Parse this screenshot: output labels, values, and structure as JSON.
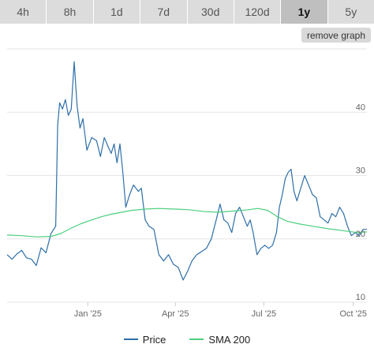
{
  "timeframes": [
    {
      "label": "4h",
      "active": false
    },
    {
      "label": "8h",
      "active": false
    },
    {
      "label": "1d",
      "active": false
    },
    {
      "label": "7d",
      "active": false
    },
    {
      "label": "30d",
      "active": false
    },
    {
      "label": "120d",
      "active": false
    },
    {
      "label": "1y",
      "active": true
    },
    {
      "label": "5y",
      "active": false
    }
  ],
  "remove_graph_label": "remove graph",
  "chart_data": {
    "type": "line",
    "x_start": "2024-10-10",
    "x_end": "2025-10-15",
    "ylim": [
      10,
      50
    ],
    "yticks": [
      10,
      20,
      30,
      40
    ],
    "xticks": [
      {
        "date": "2025-01-01",
        "label": "Jan '25"
      },
      {
        "date": "2025-04-01",
        "label": "Apr '25"
      },
      {
        "date": "2025-07-01",
        "label": "Jul '25"
      },
      {
        "date": "2025-10-01",
        "label": "Oct '25"
      }
    ],
    "grid": true,
    "legend_position": "bottom",
    "series": [
      {
        "name": "Price",
        "color": "#2f6fa8",
        "points": [
          [
            "2024-10-10",
            17.5
          ],
          [
            "2024-10-15",
            16.8
          ],
          [
            "2024-10-20",
            17.6
          ],
          [
            "2024-10-25",
            18.2
          ],
          [
            "2024-10-30",
            17.0
          ],
          [
            "2024-11-04",
            16.8
          ],
          [
            "2024-11-09",
            15.8
          ],
          [
            "2024-11-14",
            18.6
          ],
          [
            "2024-11-19",
            17.8
          ],
          [
            "2024-11-24",
            20.8
          ],
          [
            "2024-11-29",
            22.0
          ],
          [
            "2024-12-01",
            38.0
          ],
          [
            "2024-12-03",
            41.5
          ],
          [
            "2024-12-06",
            40.5
          ],
          [
            "2024-12-09",
            42.0
          ],
          [
            "2024-12-12",
            39.5
          ],
          [
            "2024-12-15",
            40.5
          ],
          [
            "2024-12-18",
            48.0
          ],
          [
            "2024-12-21",
            41.0
          ],
          [
            "2024-12-24",
            37.5
          ],
          [
            "2024-12-27",
            39.0
          ],
          [
            "2024-12-31",
            34.0
          ],
          [
            "2025-01-05",
            36.0
          ],
          [
            "2025-01-10",
            35.5
          ],
          [
            "2025-01-14",
            33.0
          ],
          [
            "2025-01-18",
            36.0
          ],
          [
            "2025-01-22",
            34.5
          ],
          [
            "2025-01-25",
            33.5
          ],
          [
            "2025-01-28",
            35.0
          ],
          [
            "2025-01-31",
            32.0
          ],
          [
            "2025-02-03",
            35.0
          ],
          [
            "2025-02-06",
            30.5
          ],
          [
            "2025-02-09",
            25.0
          ],
          [
            "2025-02-13",
            27.0
          ],
          [
            "2025-02-17",
            28.5
          ],
          [
            "2025-02-22",
            27.5
          ],
          [
            "2025-02-25",
            28.0
          ],
          [
            "2025-03-01",
            23.0
          ],
          [
            "2025-03-05",
            22.0
          ],
          [
            "2025-03-10",
            21.5
          ],
          [
            "2025-03-15",
            17.5
          ],
          [
            "2025-03-20",
            16.5
          ],
          [
            "2025-03-25",
            17.5
          ],
          [
            "2025-03-30",
            16.0
          ],
          [
            "2025-04-04",
            15.5
          ],
          [
            "2025-04-09",
            13.5
          ],
          [
            "2025-04-14",
            15.0
          ],
          [
            "2025-04-18",
            16.5
          ],
          [
            "2025-04-23",
            17.5
          ],
          [
            "2025-04-28",
            18.0
          ],
          [
            "2025-05-03",
            18.5
          ],
          [
            "2025-05-08",
            20.0
          ],
          [
            "2025-05-13",
            23.0
          ],
          [
            "2025-05-17",
            25.5
          ],
          [
            "2025-05-21",
            23.0
          ],
          [
            "2025-05-25",
            22.5
          ],
          [
            "2025-05-29",
            21.0
          ],
          [
            "2025-06-02",
            24.0
          ],
          [
            "2025-06-06",
            25.0
          ],
          [
            "2025-06-10",
            23.5
          ],
          [
            "2025-06-14",
            22.0
          ],
          [
            "2025-06-17",
            23.0
          ],
          [
            "2025-06-20",
            21.0
          ],
          [
            "2025-06-24",
            17.5
          ],
          [
            "2025-06-28",
            18.5
          ],
          [
            "2025-07-02",
            19.0
          ],
          [
            "2025-07-06",
            18.5
          ],
          [
            "2025-07-10",
            19.0
          ],
          [
            "2025-07-14",
            21.0
          ],
          [
            "2025-07-17",
            25.0
          ],
          [
            "2025-07-20",
            27.0
          ],
          [
            "2025-07-23",
            29.5
          ],
          [
            "2025-07-26",
            30.5
          ],
          [
            "2025-07-29",
            31.0
          ],
          [
            "2025-08-01",
            27.5
          ],
          [
            "2025-08-04",
            26.0
          ],
          [
            "2025-08-08",
            28.0
          ],
          [
            "2025-08-12",
            30.0
          ],
          [
            "2025-08-16",
            28.5
          ],
          [
            "2025-08-20",
            27.0
          ],
          [
            "2025-08-24",
            26.5
          ],
          [
            "2025-08-28",
            23.5
          ],
          [
            "2025-09-01",
            23.0
          ],
          [
            "2025-09-05",
            22.5
          ],
          [
            "2025-09-09",
            24.0
          ],
          [
            "2025-09-13",
            23.5
          ],
          [
            "2025-09-17",
            25.0
          ],
          [
            "2025-09-21",
            24.0
          ],
          [
            "2025-09-25",
            22.0
          ],
          [
            "2025-09-29",
            20.5
          ],
          [
            "2025-10-03",
            21.0
          ],
          [
            "2025-10-07",
            20.5
          ],
          [
            "2025-10-11",
            21.5
          ],
          [
            "2025-10-15",
            21.5
          ]
        ]
      },
      {
        "name": "SMA 200",
        "color": "#4ccf7d",
        "points": [
          [
            "2024-10-10",
            20.6
          ],
          [
            "2024-10-25",
            20.5
          ],
          [
            "2024-11-10",
            20.3
          ],
          [
            "2024-11-25",
            20.4
          ],
          [
            "2024-12-05",
            20.9
          ],
          [
            "2024-12-15",
            21.7
          ],
          [
            "2024-12-25",
            22.4
          ],
          [
            "2025-01-05",
            23.0
          ],
          [
            "2025-01-15",
            23.5
          ],
          [
            "2025-01-25",
            23.9
          ],
          [
            "2025-02-05",
            24.2
          ],
          [
            "2025-02-15",
            24.5
          ],
          [
            "2025-03-01",
            24.7
          ],
          [
            "2025-03-15",
            24.8
          ],
          [
            "2025-04-01",
            24.7
          ],
          [
            "2025-04-15",
            24.6
          ],
          [
            "2025-05-01",
            24.3
          ],
          [
            "2025-05-15",
            24.2
          ],
          [
            "2025-06-01",
            24.4
          ],
          [
            "2025-06-15",
            24.6
          ],
          [
            "2025-06-25",
            24.8
          ],
          [
            "2025-07-05",
            24.5
          ],
          [
            "2025-07-15",
            23.5
          ],
          [
            "2025-07-25",
            22.8
          ],
          [
            "2025-08-05",
            22.4
          ],
          [
            "2025-08-20",
            22.0
          ],
          [
            "2025-09-05",
            21.6
          ],
          [
            "2025-09-20",
            21.3
          ],
          [
            "2025-10-05",
            21.0
          ],
          [
            "2025-10-15",
            21.1
          ]
        ]
      }
    ]
  }
}
